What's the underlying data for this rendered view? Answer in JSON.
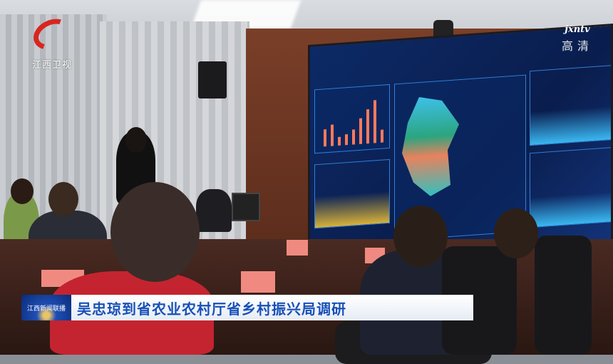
{
  "channel_logo": {
    "text": "江西卫视",
    "color": "#d8261f"
  },
  "watermark": {
    "brand": "jxntv",
    "quality": "高清"
  },
  "news_caption": {
    "program_badge": "江西新闻联播",
    "headline": "吴忠琼到省农业农村厅省乡村振兴局调研",
    "text_color": "#1750b8"
  },
  "scene": {
    "screen_bar_heights": [
      0.4,
      0.5,
      0.2,
      0.25,
      0.35,
      0.6,
      0.8,
      1.0,
      0.3
    ]
  }
}
